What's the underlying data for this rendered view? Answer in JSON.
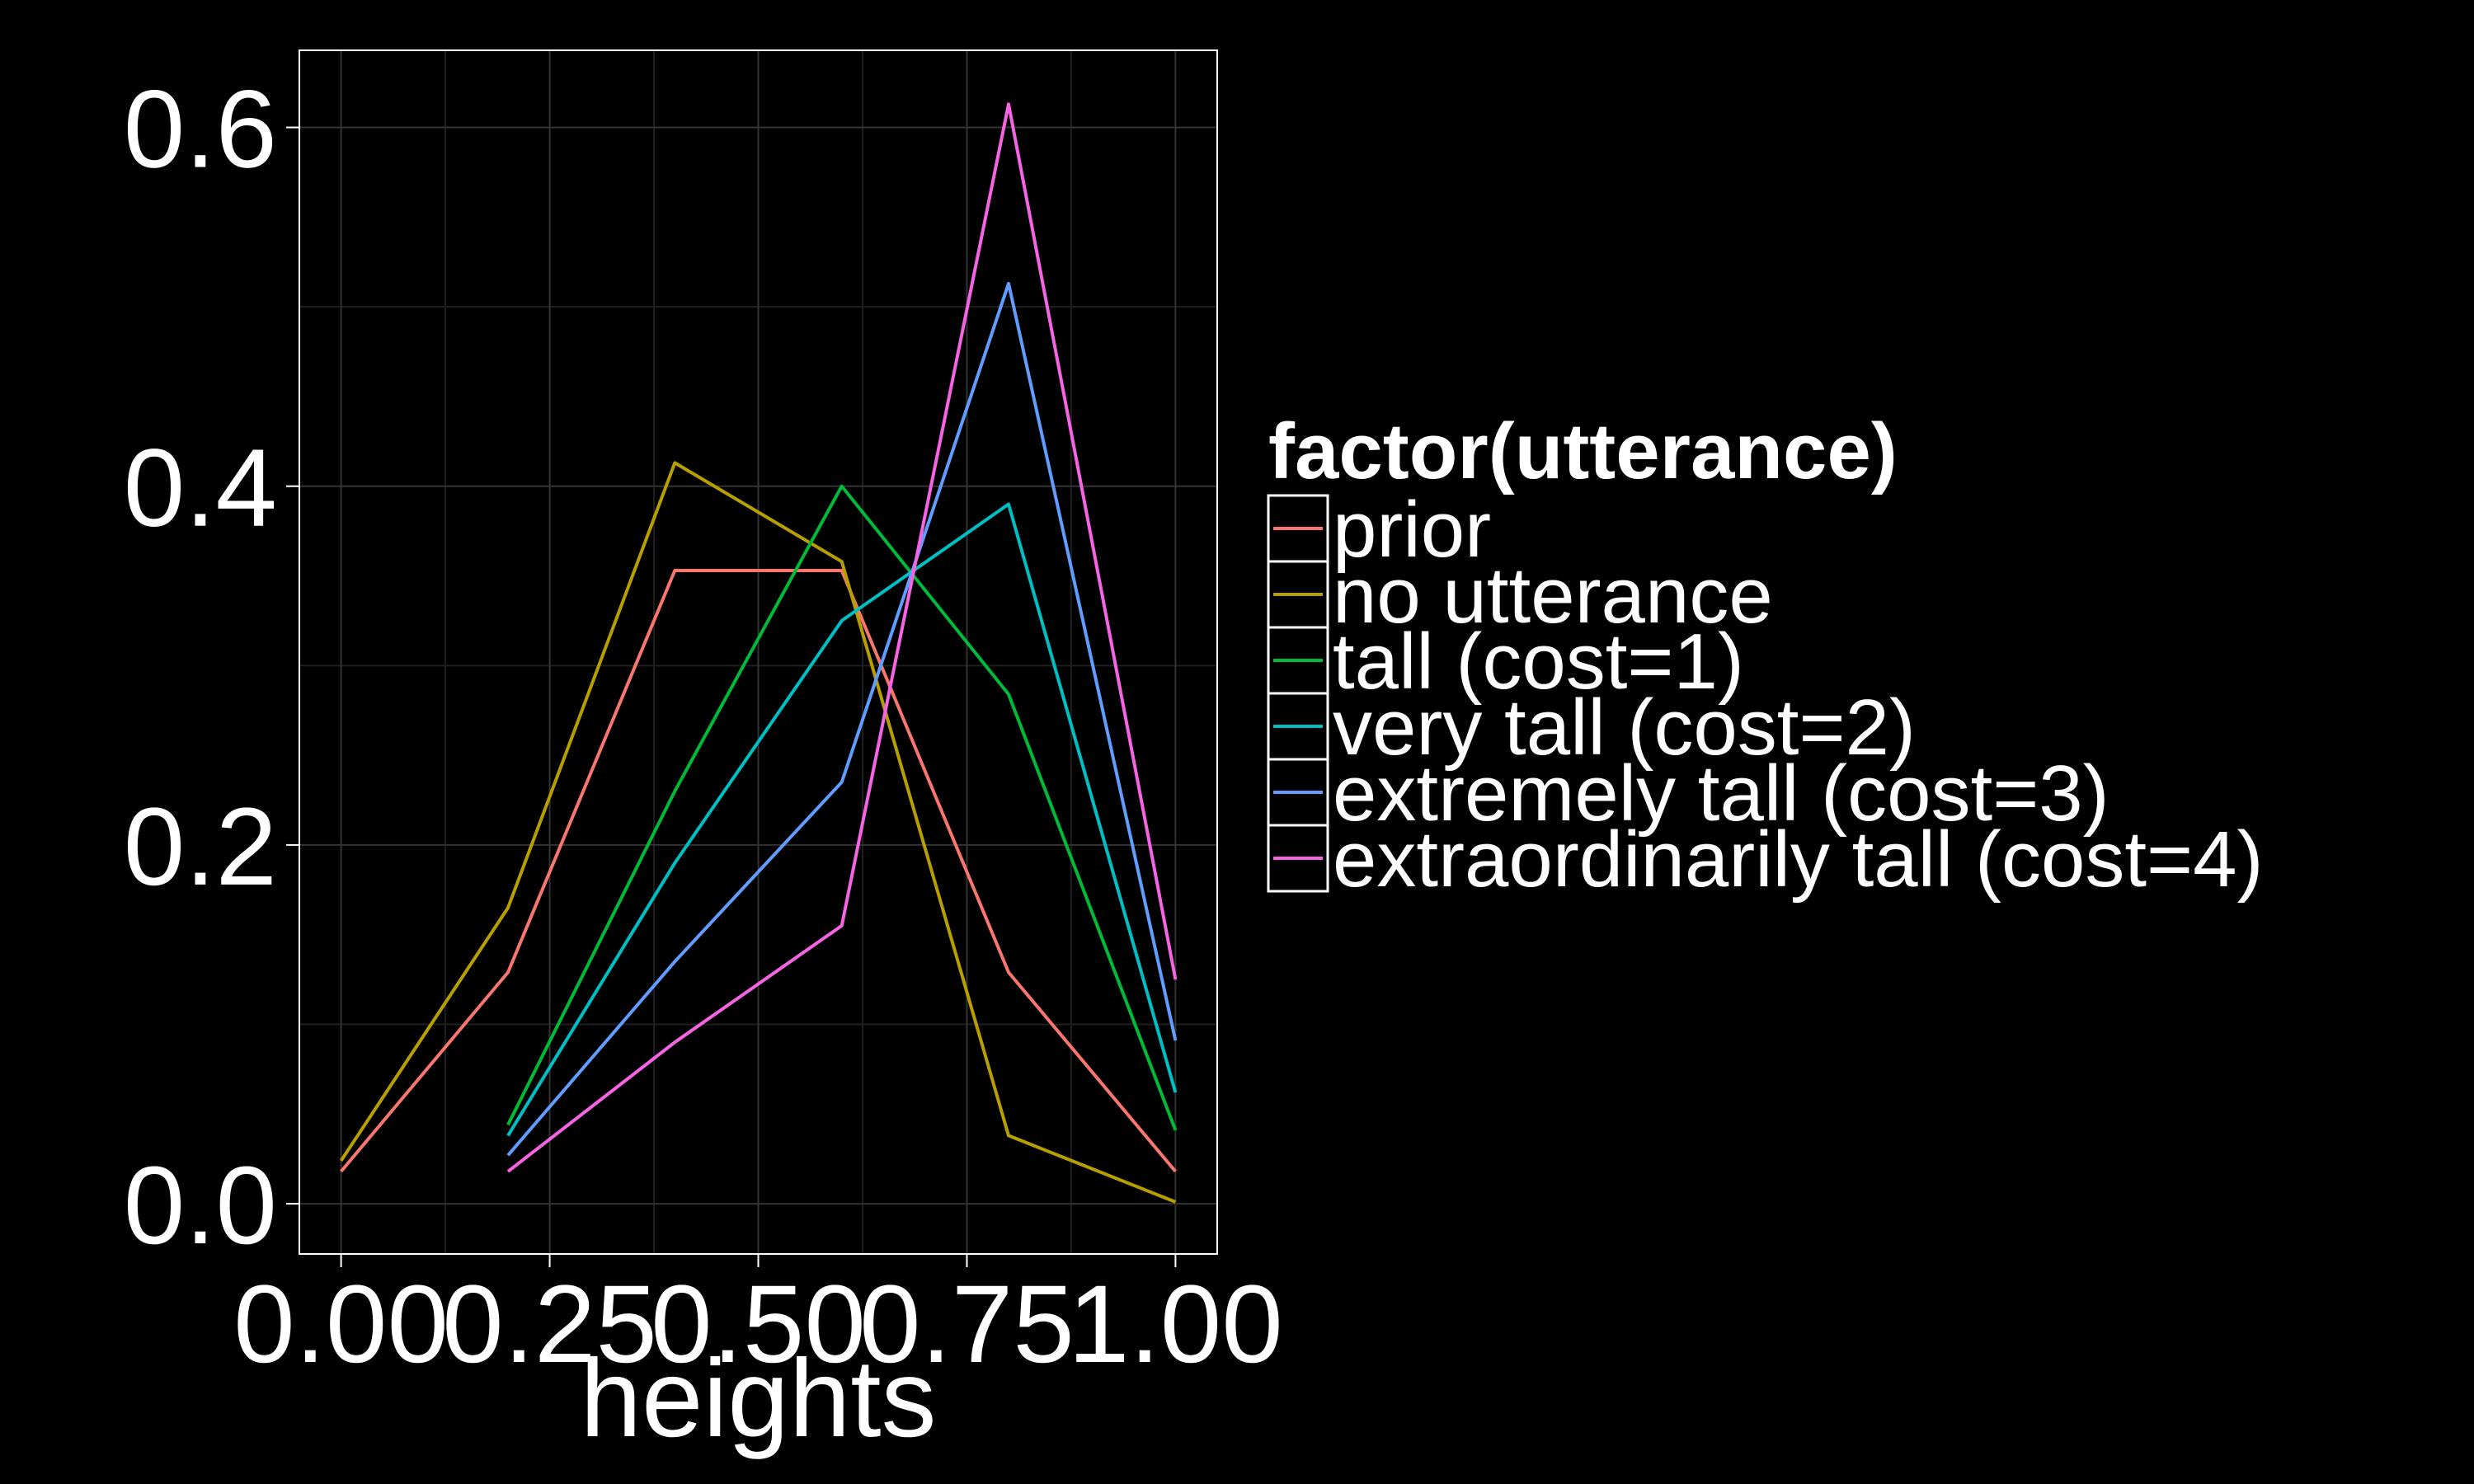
{
  "chart_data": {
    "type": "line",
    "title": "",
    "xlabel": "heights",
    "ylabel": "",
    "xlim": [
      -0.05,
      1.05
    ],
    "ylim": [
      -0.028,
      0.643
    ],
    "x_ticks": [
      0.0,
      0.25,
      0.5,
      0.75,
      1.0
    ],
    "x_tick_labels": [
      "0.00",
      "0.25",
      "0.50",
      "0.75",
      "1.00"
    ],
    "y_ticks": [
      0.0,
      0.2,
      0.4,
      0.6
    ],
    "y_tick_labels": [
      "0.0",
      "0.2",
      "0.4",
      "0.6"
    ],
    "grid": true,
    "legend": {
      "title": "factor(utterance)",
      "position": "right"
    },
    "series": [
      {
        "name": "prior",
        "color": "#F8766D",
        "x": [
          0.0,
          0.2,
          0.4,
          0.6,
          0.8,
          1.0
        ],
        "y": [
          0.018,
          0.129,
          0.353,
          0.353,
          0.129,
          0.018
        ]
      },
      {
        "name": "no utterance",
        "color": "#B79F00",
        "x": [
          0.0,
          0.2,
          0.4,
          0.6,
          0.8,
          1.0
        ],
        "y": [
          0.024,
          0.165,
          0.413,
          0.358,
          0.038,
          0.001
        ]
      },
      {
        "name": "tall (cost=1)",
        "color": "#00BA38",
        "x": [
          0.2,
          0.4,
          0.6,
          0.8,
          1.0
        ],
        "y": [
          0.044,
          0.23,
          0.4,
          0.284,
          0.041
        ]
      },
      {
        "name": "very tall (cost=2)",
        "color": "#00BFC4",
        "x": [
          0.2,
          0.4,
          0.6,
          0.8,
          1.0
        ],
        "y": [
          0.038,
          0.19,
          0.325,
          0.39,
          0.062
        ]
      },
      {
        "name": "extremely tall (cost=3)",
        "color": "#619CFF",
        "x": [
          0.2,
          0.4,
          0.6,
          0.8,
          1.0
        ],
        "y": [
          0.027,
          0.135,
          0.235,
          0.513,
          0.091
        ]
      },
      {
        "name": "extraordinarily tall (cost=4)",
        "color": "#F564E3",
        "x": [
          0.2,
          0.4,
          0.6,
          0.8,
          1.0
        ],
        "y": [
          0.018,
          0.09,
          0.155,
          0.613,
          0.125
        ]
      }
    ]
  }
}
